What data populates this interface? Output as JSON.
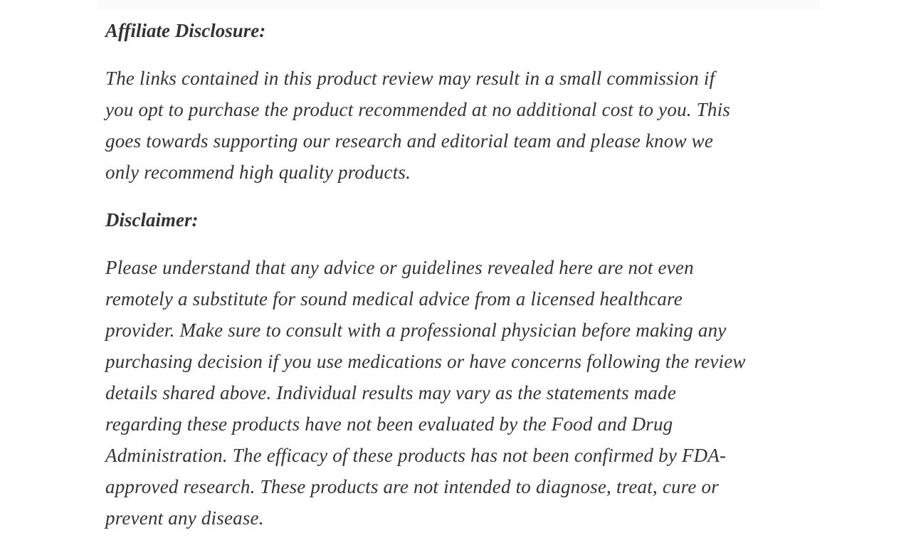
{
  "page": {
    "background_color": "#ffffff",
    "text_color": "#333333",
    "top_strip_color": "#fbfbfb"
  },
  "article": {
    "affiliate": {
      "heading": "Affiliate Disclosure:",
      "paragraph": "The links contained in this product review may result in a small commission if\nyou opt to purchase the product recommended at no additional cost to you. This\ngoes towards supporting our research and editorial team and please know we\nonly recommend high quality products."
    },
    "disclaimer": {
      "heading": "Disclaimer:",
      "paragraph": "Please understand that any advice or guidelines revealed here are not even\nremotely a substitute for sound medical advice from a licensed healthcare\nprovider. Make sure to consult with a professional physician before making any\npurchasing decision if you use medications or have concerns following the review\ndetails shared above. Individual results may vary as the statements made\nregarding these products have not been evaluated by the Food and Drug\nAdministration. The efficacy of these products has not been confirmed by FDA-\napproved research. These products are not intended to diagnose, treat, cure or\nprevent any disease."
    }
  }
}
